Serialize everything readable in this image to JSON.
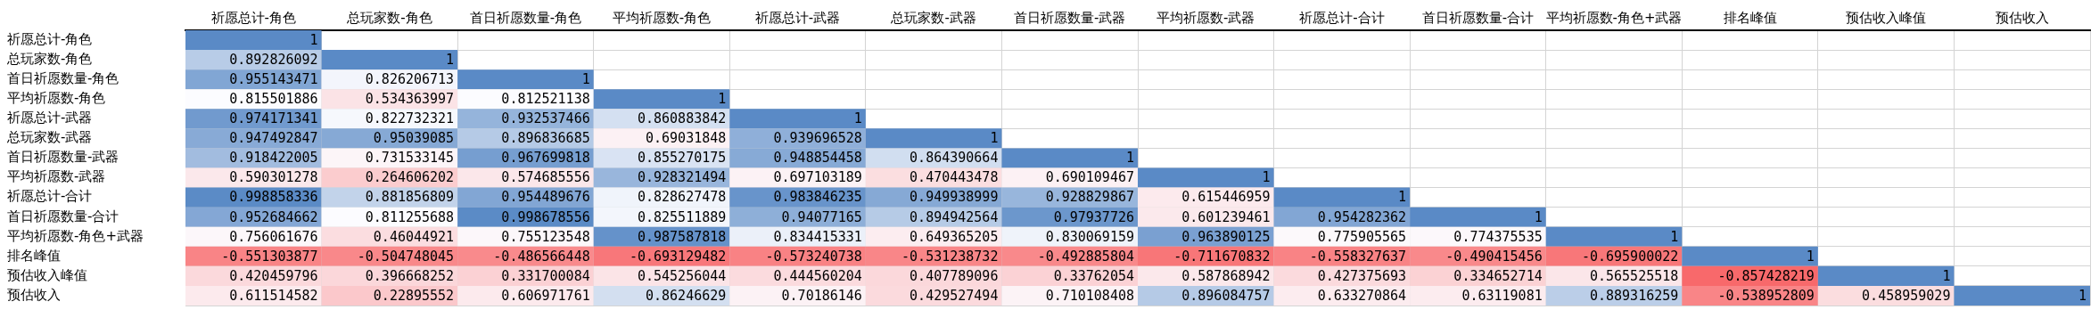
{
  "chart_data": {
    "type": "heatmap",
    "grid": true,
    "data_labels": true,
    "categories": [
      "祈愿总计-角色",
      "总玩家数-角色",
      "首日祈愿数量-角色",
      "平均祈愿数-角色",
      "祈愿总计-武器",
      "总玩家数-武器",
      "首日祈愿数量-武器",
      "平均祈愿数-武器",
      "祈愿总计-合计",
      "首日祈愿数量-合计",
      "平均祈愿数-角色+武器",
      "排名峰值",
      "预估收入峰值",
      "预估收入"
    ],
    "y_categories": [
      "祈愿总计-角色",
      "总玩家数-角色",
      "首日祈愿数量-角色",
      "平均祈愿数-角色",
      "祈愿总计-武器",
      "总玩家数-武器",
      "首日祈愿数量-武器",
      "平均祈愿数-武器",
      "祈愿总计-合计",
      "首日祈愿数量-合计",
      "平均祈愿数-角色+武器",
      "排名峰值",
      "预估收入峰值",
      "预估收入"
    ],
    "cells": [
      [
        1,
        null,
        null,
        null,
        null,
        null,
        null,
        null,
        null,
        null,
        null,
        null,
        null,
        null
      ],
      [
        0.892826092,
        1,
        null,
        null,
        null,
        null,
        null,
        null,
        null,
        null,
        null,
        null,
        null,
        null
      ],
      [
        0.955143471,
        0.826206713,
        1,
        null,
        null,
        null,
        null,
        null,
        null,
        null,
        null,
        null,
        null,
        null
      ],
      [
        0.815501886,
        0.534363997,
        0.812521138,
        1,
        null,
        null,
        null,
        null,
        null,
        null,
        null,
        null,
        null,
        null
      ],
      [
        0.974171341,
        0.822732321,
        0.932537466,
        0.860883842,
        1,
        null,
        null,
        null,
        null,
        null,
        null,
        null,
        null,
        null
      ],
      [
        0.947492847,
        0.95039085,
        0.896836685,
        0.69031848,
        0.939696528,
        1,
        null,
        null,
        null,
        null,
        null,
        null,
        null,
        null
      ],
      [
        0.918422005,
        0.731533145,
        0.967699818,
        0.855270175,
        0.948854458,
        0.864390664,
        1,
        null,
        null,
        null,
        null,
        null,
        null,
        null
      ],
      [
        0.590301278,
        0.264606202,
        0.574685556,
        0.928321494,
        0.697103189,
        0.470443478,
        0.690109467,
        1,
        null,
        null,
        null,
        null,
        null,
        null
      ],
      [
        0.998858336,
        0.881856809,
        0.954489676,
        0.828627478,
        0.983846235,
        0.949938999,
        0.928829867,
        0.615446959,
        1,
        null,
        null,
        null,
        null,
        null
      ],
      [
        0.952684662,
        0.811255688,
        0.998678556,
        0.825511889,
        0.94077165,
        0.894942564,
        0.97937726,
        0.601239461,
        0.954282362,
        1,
        null,
        null,
        null,
        null
      ],
      [
        0.756061676,
        0.46044921,
        0.755123548,
        0.987587818,
        0.834415331,
        0.649365205,
        0.830069159,
        0.963890125,
        0.775905565,
        0.774375535,
        1,
        null,
        null,
        null
      ],
      [
        -0.551303877,
        -0.504748045,
        -0.486566448,
        -0.693129482,
        -0.573240738,
        -0.531238732,
        -0.492885804,
        -0.711670832,
        -0.558327637,
        -0.490415456,
        -0.695900022,
        1,
        null,
        null
      ],
      [
        0.420459796,
        0.396668252,
        0.331700084,
        0.545256044,
        0.444560204,
        0.407789096,
        0.33762054,
        0.587868942,
        0.427375693,
        0.334652714,
        0.565525518,
        -0.857428219,
        1,
        null
      ],
      [
        0.611514582,
        0.22895552,
        0.606971761,
        0.86246629,
        0.70186146,
        0.429527494,
        0.710108408,
        0.896084757,
        0.633270864,
        0.63119081,
        0.889316259,
        -0.538952809,
        0.458959029,
        1
      ]
    ]
  }
}
